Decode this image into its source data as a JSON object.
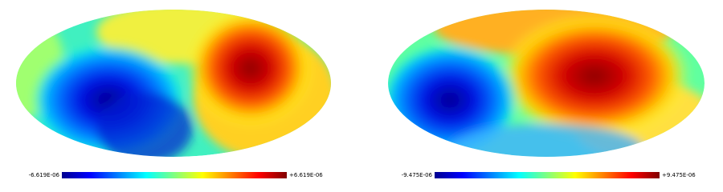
{
  "maps": [
    {
      "colorbar": {
        "min": "-6.619E-06",
        "max": "+6.619E-06"
      }
    },
    {
      "colorbar": {
        "min": "-9.475E-06",
        "max": "+9.475E-06"
      }
    }
  ]
}
